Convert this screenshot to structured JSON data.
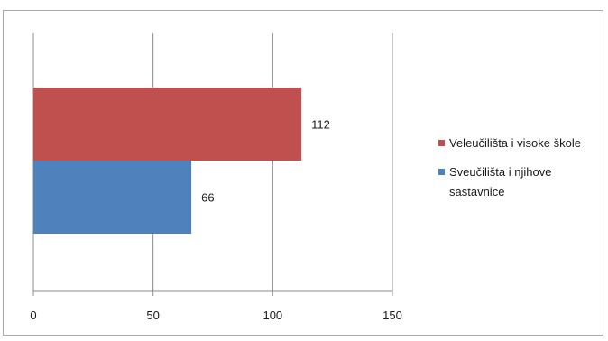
{
  "chart_data": {
    "type": "bar",
    "orientation": "horizontal",
    "categories": [
      ""
    ],
    "series": [
      {
        "name": "Veleučilišta i visoke škole",
        "values": [
          112
        ],
        "color": "#c0504d"
      },
      {
        "name": "Sveučilišta i njihove sastavnice",
        "values": [
          66
        ],
        "color": "#4f81bd"
      }
    ],
    "xlim": [
      0,
      150
    ],
    "xticks": [
      0,
      50,
      100,
      150
    ],
    "grid": "vertical",
    "legend": "right",
    "title": "",
    "xlabel": "",
    "ylabel": ""
  }
}
